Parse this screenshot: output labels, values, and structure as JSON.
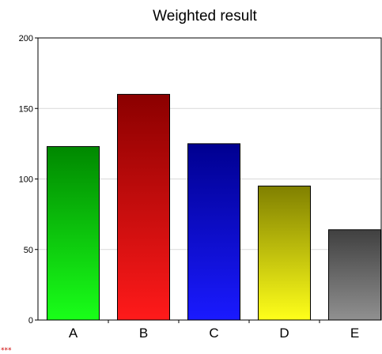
{
  "chart_data": {
    "type": "bar",
    "title": "Weighted result",
    "categories": [
      "A",
      "B",
      "C",
      "D",
      "E"
    ],
    "values": [
      123,
      160,
      125,
      95,
      64
    ],
    "ylim": [
      0,
      200
    ],
    "yticks": [
      0,
      50,
      100,
      150,
      200
    ],
    "grid": true,
    "colors": [
      {
        "top": "#008800",
        "bottom": "#19ff19"
      },
      {
        "top": "#8b0000",
        "bottom": "#ff1a1a"
      },
      {
        "top": "#000090",
        "bottom": "#1a1aff"
      },
      {
        "top": "#808000",
        "bottom": "#ffff1a"
      },
      {
        "top": "#404040",
        "bottom": "#909090"
      }
    ]
  },
  "watermark": "***"
}
